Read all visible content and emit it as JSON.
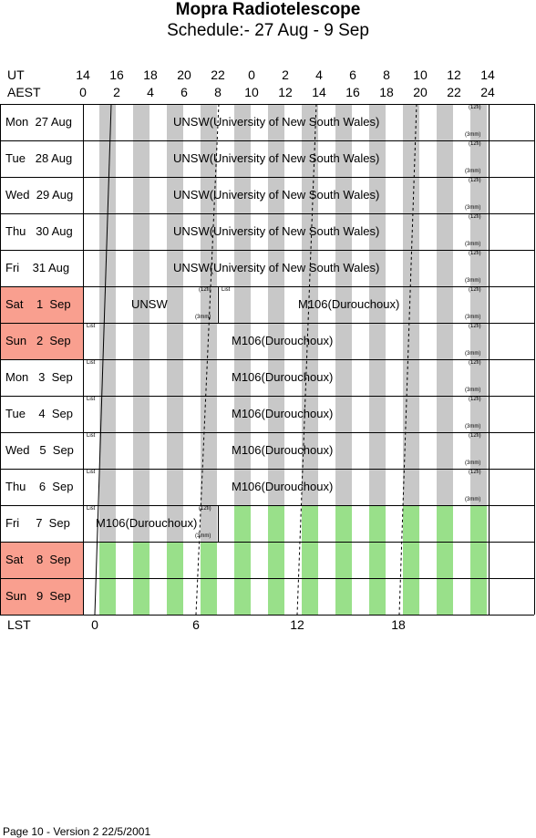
{
  "title": "Mopra Radiotelescope",
  "subtitle": "Schedule:- 27 Aug - 9  Sep",
  "ut_label": "UT",
  "aest_label": "AEST",
  "lst_label": "LST",
  "ut_hours": [
    "14",
    "16",
    "18",
    "20",
    "22",
    "0",
    "2",
    "4",
    "6",
    "8",
    "10",
    "12",
    "14"
  ],
  "aest_hours": [
    "0",
    "2",
    "4",
    "6",
    "8",
    "10",
    "12",
    "14",
    "16",
    "18",
    "20",
    "22",
    "24"
  ],
  "lst_ticks": [
    "0",
    "6",
    "12",
    "18"
  ],
  "days": [
    {
      "label": "Mon  27 Aug",
      "weekend": false
    },
    {
      "label": "Tue   28 Aug",
      "weekend": false
    },
    {
      "label": "Wed  29 Aug",
      "weekend": false
    },
    {
      "label": "Thu   30 Aug",
      "weekend": false
    },
    {
      "label": "Fri    31 Aug",
      "weekend": false
    },
    {
      "label": "Sat    1  Sep",
      "weekend": true
    },
    {
      "label": "Sun   2  Sep",
      "weekend": true
    },
    {
      "label": "Mon   3  Sep",
      "weekend": false
    },
    {
      "label": "Tue    4  Sep",
      "weekend": false
    },
    {
      "label": "Wed   5  Sep",
      "weekend": false
    },
    {
      "label": "Thu    6  Sep",
      "weekend": false
    },
    {
      "label": "Fri     7  Sep",
      "weekend": false
    },
    {
      "label": "Sat    8  Sep",
      "weekend": true
    },
    {
      "label": "Sun   9  Sep",
      "weekend": true
    }
  ],
  "projects": {
    "unsw_full": "UNSW(University of New South Wales)",
    "unsw": "UNSW",
    "m106": "M106(Durouchoux)",
    "list": "List",
    "receiver_12mm": "(12fi)",
    "receiver_3mm": "(3mm)"
  },
  "footer": "Page 10 - Version 2  22/5/2001",
  "colors": {
    "weekend": "#f99f8f",
    "grey_band": "#c8c8c8",
    "green_band": "#99e08a"
  }
}
